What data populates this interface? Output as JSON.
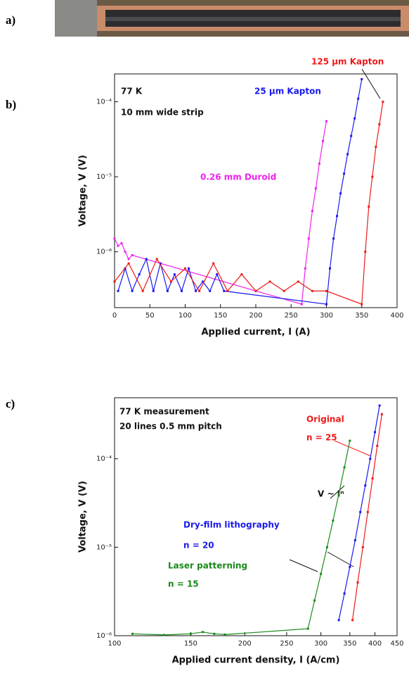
{
  "panel_labels": [
    "a)",
    "b)",
    "c)"
  ],
  "chart_data": [
    {
      "type": "line",
      "ylabel": "Voltage, V (V)",
      "xlabel": "Applied current, I (A)",
      "annotations": [
        "77 K",
        "10 mm wide strip"
      ],
      "xlim": [
        0,
        400
      ],
      "xticks": [
        0,
        50,
        100,
        150,
        200,
        250,
        300,
        350,
        400
      ],
      "ylim": [
        1.8e-07,
        0.000235
      ],
      "ylog": true,
      "yticks": [
        {
          "value": 1e-06,
          "label": "10⁻⁶"
        },
        {
          "value": 1e-05,
          "label": "10⁻⁵"
        },
        {
          "value": 0.0001,
          "label": "10⁻⁴"
        }
      ],
      "series": [
        {
          "name": "0.26 mm Duroid",
          "color": "#ee22ee",
          "x": [
            0,
            5,
            10,
            15,
            20,
            25,
            265,
            270,
            275,
            280,
            285,
            290,
            295,
            300
          ],
          "values": [
            1.5e-06,
            1.2e-06,
            1.3e-06,
            1e-06,
            8e-07,
            9e-07,
            2e-07,
            6e-07,
            1.5e-06,
            3.5e-06,
            7e-06,
            1.5e-05,
            3e-05,
            5.5e-05
          ]
        },
        {
          "name": "25 µm Kapton",
          "color": "#1a1aee",
          "x": [
            5,
            15,
            25,
            35,
            45,
            55,
            65,
            75,
            85,
            95,
            105,
            115,
            125,
            135,
            145,
            155,
            300,
            305,
            310,
            315,
            320,
            325,
            330,
            335,
            340,
            345,
            350
          ],
          "values": [
            3e-07,
            6e-07,
            3e-07,
            5e-07,
            8e-07,
            3e-07,
            7e-07,
            3e-07,
            5e-07,
            3e-07,
            6e-07,
            3e-07,
            4e-07,
            3e-07,
            5e-07,
            3e-07,
            2e-07,
            6e-07,
            1.5e-06,
            3e-06,
            6e-06,
            1.1e-05,
            2e-05,
            3.5e-05,
            6e-05,
            0.00011,
            0.0002
          ]
        },
        {
          "name": "125 µm Kapton",
          "color": "#ee1a1a",
          "x": [
            0,
            20,
            40,
            60,
            80,
            100,
            120,
            140,
            160,
            180,
            200,
            220,
            240,
            260,
            280,
            300,
            350,
            355,
            360,
            365,
            370,
            375,
            380
          ],
          "values": [
            4e-07,
            7e-07,
            3e-07,
            8e-07,
            4e-07,
            6e-07,
            3e-07,
            7e-07,
            3e-07,
            5e-07,
            3e-07,
            4e-07,
            3e-07,
            4e-07,
            3e-07,
            3e-07,
            2e-07,
            1e-06,
            4e-06,
            1e-05,
            2.5e-05,
            5e-05,
            0.0001
          ]
        }
      ]
    },
    {
      "type": "line",
      "ylabel": "Voltage, V (V)",
      "xlabel": "Applied current density, I (A/cm)",
      "annotations": [
        "77 K measurement",
        "20 lines 0.5 mm pitch",
        "n = 25",
        "V ~ Iⁿ",
        "n = 20",
        "n = 15"
      ],
      "xlim": [
        100,
        450
      ],
      "xlog": true,
      "xticks": [
        100,
        150,
        200,
        250,
        300,
        350,
        400,
        450
      ],
      "ylim": [
        1e-06,
        0.00049
      ],
      "ylog": true,
      "yticks": [
        {
          "value": 1e-06,
          "label": "10⁻⁶"
        },
        {
          "value": 1e-05,
          "label": "10⁻⁵"
        },
        {
          "value": 0.0001,
          "label": "10⁻⁴"
        }
      ],
      "series": [
        {
          "name": "Original",
          "color": "#ee1a1a",
          "x": [
            355,
            365,
            375,
            385,
            395,
            405,
            415
          ],
          "values": [
            1.5e-06,
            4e-06,
            1e-05,
            2.5e-05,
            6e-05,
            0.00014,
            0.00032
          ]
        },
        {
          "name": "Dry-film lithography",
          "color": "#1a1aee",
          "x": [
            330,
            340,
            350,
            360,
            370,
            380,
            390,
            400,
            410
          ],
          "values": [
            1.5e-06,
            3e-06,
            6e-06,
            1.2e-05,
            2.5e-05,
            5e-05,
            0.0001,
            0.0002,
            0.0004
          ]
        },
        {
          "name": "Laser patterning",
          "color": "#1a8a1a",
          "x": [
            110,
            130,
            150,
            160,
            170,
            180,
            280,
            290,
            300,
            310,
            320,
            330,
            340,
            350
          ],
          "values": [
            1.05e-06,
            1.02e-06,
            1.05e-06,
            1.1e-06,
            1.05e-06,
            1.03e-06,
            1.2e-06,
            2.5e-06,
            5e-06,
            1e-05,
            2e-05,
            4e-05,
            8e-05,
            0.00016
          ]
        }
      ]
    }
  ]
}
